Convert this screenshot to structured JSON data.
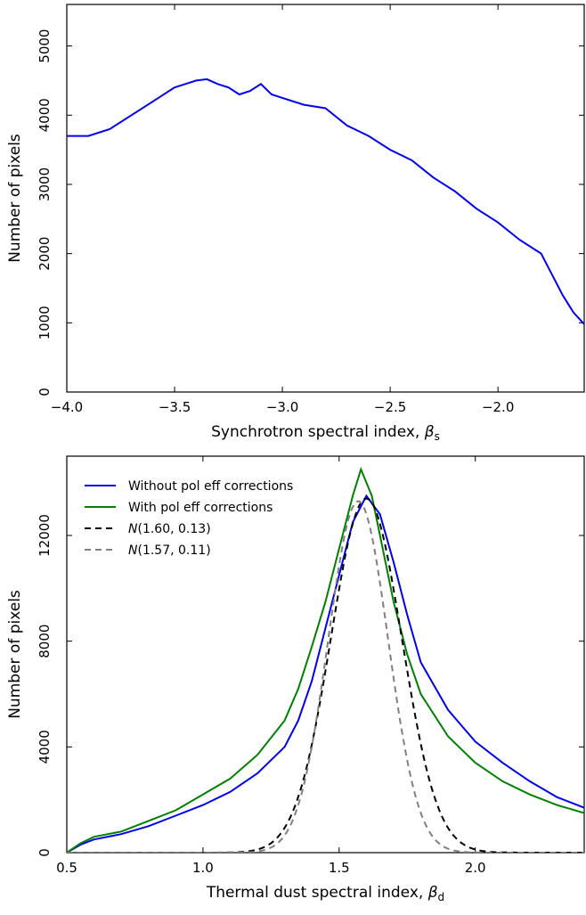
{
  "chart_data": [
    {
      "type": "line",
      "xlabel": "Synchrotron spectral index, ",
      "xlabel_symbol": "β",
      "xlabel_sub": "s",
      "ylabel": "Number of pixels",
      "xlim": [
        -4.0,
        -1.6
      ],
      "ylim": [
        0,
        5600
      ],
      "xticks": [
        -4.0,
        -3.5,
        -3.0,
        -2.5,
        -2.0
      ],
      "xtick_labels": [
        "−4.0",
        "−3.5",
        "−3.0",
        "−2.5",
        "−2.0"
      ],
      "yticks": [
        0,
        1000,
        2000,
        3000,
        4000,
        5000
      ],
      "ytick_labels": [
        "0",
        "1000",
        "2000",
        "3000",
        "4000",
        "5000"
      ],
      "grid": false,
      "series": [
        {
          "color": "#0000ee",
          "x": [
            -4.0,
            -3.9,
            -3.8,
            -3.7,
            -3.6,
            -3.5,
            -3.45,
            -3.4,
            -3.35,
            -3.3,
            -3.25,
            -3.2,
            -3.15,
            -3.1,
            -3.05,
            -3.0,
            -2.9,
            -2.8,
            -2.7,
            -2.6,
            -2.5,
            -2.4,
            -2.3,
            -2.2,
            -2.1,
            -2.0,
            -1.9,
            -1.8,
            -1.75,
            -1.7,
            -1.65,
            -1.6
          ],
          "y": [
            3700,
            3700,
            3800,
            4000,
            4200,
            4400,
            4450,
            4500,
            4520,
            4450,
            4400,
            4300,
            4350,
            4450,
            4300,
            4250,
            4150,
            4100,
            3850,
            3700,
            3500,
            3350,
            3100,
            2900,
            2650,
            2450,
            2200,
            2000,
            1700,
            1400,
            1150,
            980
          ]
        }
      ]
    },
    {
      "type": "line",
      "xlabel": "Thermal dust spectral index, ",
      "xlabel_symbol": "β",
      "xlabel_sub": "d",
      "ylabel": "Number of pixels",
      "xlim": [
        0.5,
        2.4
      ],
      "ylim": [
        0,
        15000
      ],
      "xticks": [
        0.5,
        1.0,
        1.5,
        2.0
      ],
      "xtick_labels": [
        "0.5",
        "1.0",
        "1.5",
        "2.0"
      ],
      "yticks": [
        0,
        4000,
        8000,
        12000
      ],
      "ytick_labels": [
        "0",
        "4000",
        "8000",
        "12000"
      ],
      "grid": false,
      "legend_position": "top-left",
      "series": [
        {
          "name": "Without pol eff corrections",
          "color": "#0000ee",
          "style": "solid",
          "x": [
            0.5,
            0.55,
            0.6,
            0.7,
            0.8,
            0.9,
            1.0,
            1.1,
            1.2,
            1.3,
            1.35,
            1.4,
            1.45,
            1.5,
            1.55,
            1.6,
            1.65,
            1.7,
            1.75,
            1.8,
            1.9,
            2.0,
            2.1,
            2.2,
            2.3,
            2.4
          ],
          "y": [
            0,
            300,
            500,
            700,
            1000,
            1400,
            1800,
            2300,
            3000,
            4000,
            5000,
            6500,
            8500,
            10500,
            12500,
            13500,
            12800,
            11000,
            9000,
            7200,
            5400,
            4200,
            3400,
            2700,
            2100,
            1700
          ]
        },
        {
          "name": "With pol eff corrections",
          "color": "#008000",
          "style": "solid",
          "x": [
            0.5,
            0.55,
            0.6,
            0.7,
            0.8,
            0.9,
            1.0,
            1.1,
            1.2,
            1.3,
            1.35,
            1.4,
            1.45,
            1.5,
            1.55,
            1.58,
            1.62,
            1.65,
            1.7,
            1.75,
            1.8,
            1.9,
            2.0,
            2.1,
            2.2,
            2.3,
            2.4
          ],
          "y": [
            0,
            350,
            600,
            800,
            1200,
            1600,
            2200,
            2800,
            3700,
            5000,
            6200,
            7800,
            9500,
            11500,
            13500,
            14500,
            13500,
            12000,
            9500,
            7500,
            6000,
            4400,
            3400,
            2700,
            2200,
            1800,
            1500
          ]
        },
        {
          "name": "N(1.60, 0.13)",
          "math": true,
          "color": "#000000",
          "style": "dashed",
          "gaussian": {
            "mu": 1.6,
            "sigma": 0.13,
            "peak": 13400
          }
        },
        {
          "name": "N(1.57, 0.11)",
          "math": true,
          "color": "#808080",
          "style": "dashed",
          "gaussian": {
            "mu": 1.57,
            "sigma": 0.11,
            "peak": 13300
          }
        }
      ]
    }
  ]
}
